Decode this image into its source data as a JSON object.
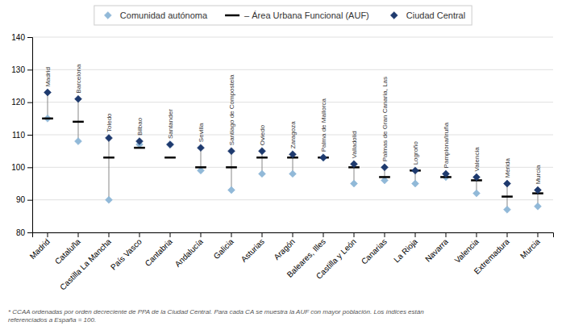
{
  "chart_data": {
    "type": "dot",
    "categories": [
      "Madrid",
      "Cataluña",
      "Castilla La Mancha",
      "País Vasco",
      "Cantabria",
      "Andalucía",
      "Galicia",
      "Asturias",
      "Aragón",
      "Baleares, Illes",
      "Castilla y León",
      "Canarias",
      "La Rioja",
      "Navarra",
      "Valencia",
      "Extremadura",
      "Murcia"
    ],
    "series": [
      {
        "name": "Comunidad autónoma",
        "color": "#91b9d8",
        "marker": "diamond",
        "values": [
          115,
          108,
          90,
          107,
          107,
          99,
          93,
          98,
          98,
          103,
          95,
          96,
          95,
          97,
          92,
          87,
          88
        ]
      },
      {
        "name": "– Área Urbana Funcional (AUF)",
        "color": "#000000",
        "marker": "tick",
        "values": [
          115,
          114,
          103,
          106,
          103,
          100,
          100,
          103,
          103,
          103,
          100,
          97,
          99,
          97,
          96,
          91,
          92
        ]
      },
      {
        "name": "Ciudad Central",
        "color": "#1e3a6e",
        "marker": "diamond",
        "values": [
          123,
          121,
          109,
          108,
          107,
          106,
          105,
          105,
          104,
          103,
          101,
          100,
          99,
          98,
          97,
          95,
          93
        ]
      }
    ],
    "annotations": [
      "Madrid",
      "Barcelona",
      "Toledo",
      "Bilbao",
      "Santander",
      "Sevilla",
      "Santiago de Compostela",
      "Oviedo",
      "Zaragoza",
      "Palma de Mallorca",
      "Valladolid",
      "Palmas de Gran Canaria, Las",
      "Logroño",
      "Pamplona/Iruña",
      "Valencia",
      "Mérida",
      "Murcia"
    ],
    "footnote": "* CCAA ordenadas por orden decreciente de PPA de la Ciudad Central. Para cada CA se muestra la AUF con mayor población. Los índices están\nreferenciados a España = 100.",
    "ylim": [
      80,
      140
    ],
    "yticks": [
      80,
      90,
      100,
      110,
      120,
      130,
      140
    ],
    "grid": true
  }
}
